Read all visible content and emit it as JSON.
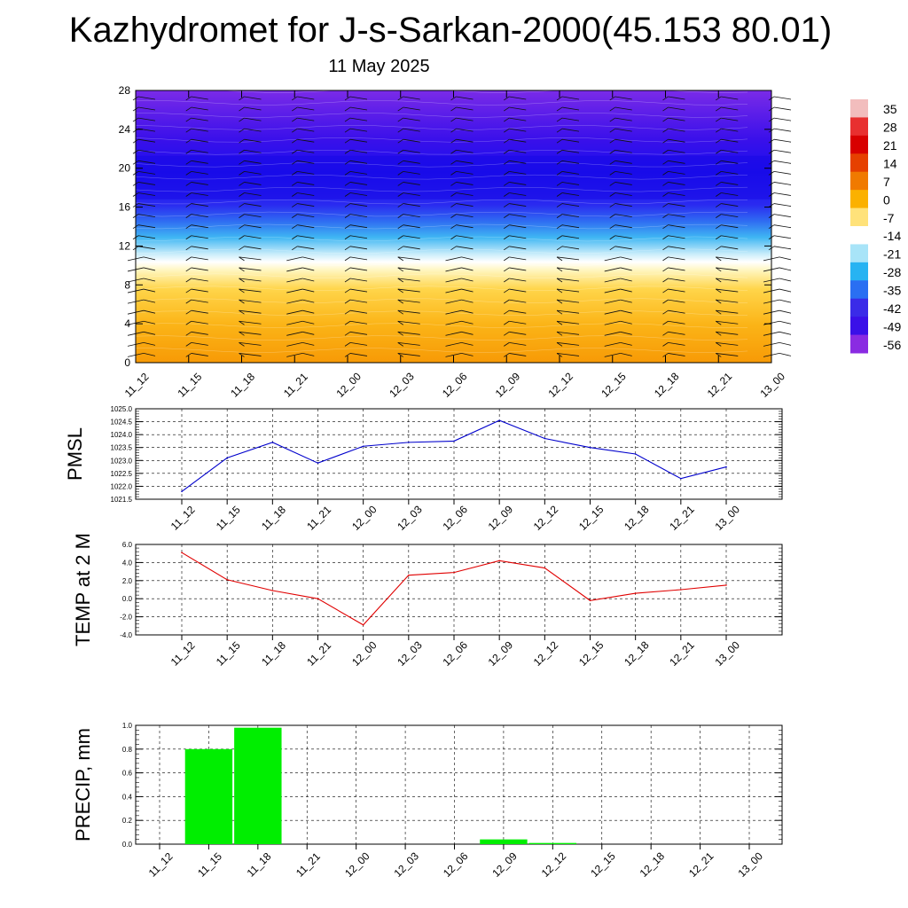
{
  "title": "Kazhydromet for J-s-Sarkan-2000(45.153 80.01)",
  "subtitle": "11 May 2025",
  "chart_data": [
    {
      "type": "heatmap",
      "name": "temperature-wind-profile",
      "x_categories": [
        "11_12",
        "11_15",
        "11_18",
        "11_21",
        "12_00",
        "12_03",
        "12_06",
        "12_09",
        "12_12",
        "12_15",
        "12_18",
        "12_21",
        "13_00"
      ],
      "ylim": [
        0,
        28
      ],
      "yticks": [
        "0",
        "4",
        "8",
        "12",
        "16",
        "20",
        "24",
        "28"
      ],
      "colorbar": {
        "labels": [
          "35",
          "28",
          "21",
          "14",
          "7",
          "0",
          "-7",
          "-14",
          "-21",
          "-28",
          "-35",
          "-42",
          "-49",
          "-56"
        ],
        "colors": [
          "#f2bdbd",
          "#e83030",
          "#d80000",
          "#e64000",
          "#f07a00",
          "#fbb100",
          "#ffe27a",
          "#ffffff",
          "#a8e4f8",
          "#27b3f2",
          "#2a6ff2",
          "#3a2be8",
          "#3a10e8",
          "#8a2be2"
        ]
      },
      "description_layers": "temperature shading with wind barbs"
    },
    {
      "type": "line",
      "name": "PMSL",
      "ylabel": "PMSL",
      "categories": [
        "11_12",
        "11_15",
        "11_18",
        "11_21",
        "12_00",
        "12_03",
        "12_06",
        "12_09",
        "12_12",
        "12_15",
        "12_18",
        "12_21",
        "13_00"
      ],
      "values": [
        1021.8,
        1023.1,
        1023.7,
        1022.9,
        1023.55,
        1023.7,
        1023.75,
        1024.55,
        1023.85,
        1023.5,
        1023.25,
        1022.3,
        1022.75
      ],
      "ylim": [
        1021.5,
        1025.0
      ],
      "yticks": [
        "1021.5",
        "1022.0",
        "1022.5",
        "1023.0",
        "1023.5",
        "1024.0",
        "1024.5",
        "1025.0"
      ],
      "color": "#0000cc"
    },
    {
      "type": "line",
      "name": "TEMP at 2 M",
      "ylabel": "TEMP at 2 M",
      "categories": [
        "11_12",
        "11_15",
        "11_18",
        "11_21",
        "12_00",
        "12_03",
        "12_06",
        "12_09",
        "12_12",
        "12_15",
        "12_18",
        "12_21",
        "13_00"
      ],
      "values": [
        5.1,
        2.1,
        0.9,
        0.0,
        -2.9,
        2.6,
        2.9,
        4.2,
        3.4,
        -0.2,
        0.6,
        1.0,
        1.5
      ],
      "ylim": [
        -4.0,
        6.0
      ],
      "yticks": [
        "-4.0",
        "-2.0",
        "0.0",
        "2.0",
        "4.0",
        "6.0"
      ],
      "color": "#e00000"
    },
    {
      "type": "bar",
      "name": "PRECIP, mm",
      "ylabel": "PRECIP, mm",
      "categories": [
        "11_12",
        "11_15",
        "11_18",
        "11_21",
        "12_00",
        "12_03",
        "12_06",
        "12_09",
        "12_12",
        "12_15",
        "12_18",
        "12_21",
        "13_00"
      ],
      "values": [
        0,
        0.8,
        0.98,
        0,
        0,
        0,
        0,
        0.04,
        0.01,
        0,
        0,
        0,
        0
      ],
      "ylim": [
        0,
        1.0
      ],
      "yticks": [
        "0.0",
        "0.2",
        "0.4",
        "0.6",
        "0.8",
        "1.0"
      ],
      "color": "#00ee00"
    }
  ]
}
